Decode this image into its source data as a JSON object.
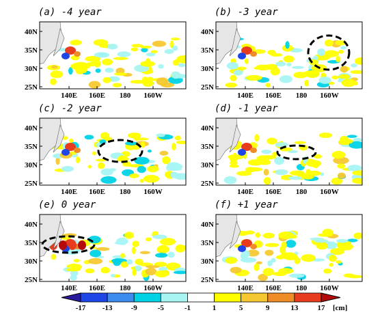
{
  "panels": [
    {
      "title": "(a) -4 year"
    },
    {
      "title": "(b) -3 year"
    },
    {
      "title": "(c) -2 year"
    },
    {
      "title": "(d) -1 year"
    },
    {
      "title": "(e) 0 year"
    },
    {
      "title": "(f) +1 year"
    }
  ],
  "lat_labels": [
    "40N",
    "35N",
    "30N",
    "25N"
  ],
  "lon_labels": [
    "140E",
    "160E",
    "180",
    "160W"
  ],
  "colorbar": {
    "levels": [
      -17,
      -13,
      -9,
      -5,
      -1,
      1,
      5,
      9,
      13,
      17
    ],
    "colors": [
      "#2a1a9c",
      "#1e46e6",
      "#3c8cf0",
      "#00d2e6",
      "#a8f4f4",
      "#ffffff",
      "#ffff00",
      "#f5c832",
      "#f08c28",
      "#e83c1e",
      "#b40a0a"
    ],
    "unit": "[cm]"
  }
}
